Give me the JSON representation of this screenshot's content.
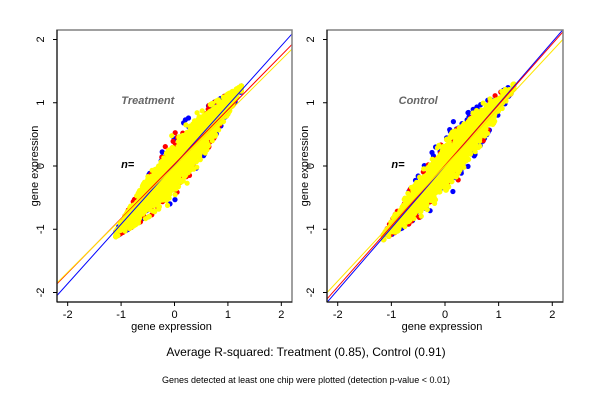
{
  "chart_data": [
    {
      "type": "scatter",
      "title": "Treatment",
      "annotation": "n=",
      "xlabel": "gene expression",
      "ylabel": "gene expression",
      "xlim": [
        -2.2,
        2.2
      ],
      "ylim": [
        -2.15,
        2.15
      ],
      "xticks": [
        -2,
        -1,
        0,
        1,
        2
      ],
      "yticks": [
        -2,
        -1,
        0,
        1,
        2
      ],
      "grid": false,
      "series": [
        {
          "name": "blue replicate",
          "color": "#0000ff",
          "spread": 0.19,
          "fit": {
            "slope": 0.94,
            "intercept": 0.02
          }
        },
        {
          "name": "red replicate",
          "color": "#ff0000",
          "spread": 0.18,
          "fit": {
            "slope": 0.86,
            "intercept": 0.03
          }
        },
        {
          "name": "yellow replicate",
          "color": "#ffff00",
          "spread": 0.16,
          "fit": {
            "slope": 0.84,
            "intercept": 0.0
          }
        }
      ],
      "point_x_range": [
        -1.1,
        1.25
      ]
    },
    {
      "type": "scatter",
      "title": "Control",
      "annotation": "n=",
      "xlabel": "gene expression",
      "ylabel": "gene expression",
      "xlim": [
        -2.2,
        2.2
      ],
      "ylim": [
        -2.15,
        2.15
      ],
      "xticks": [
        -2,
        -1,
        0,
        1,
        2
      ],
      "yticks": [
        -2,
        -1,
        0,
        1,
        2
      ],
      "grid": false,
      "series": [
        {
          "name": "blue replicate",
          "color": "#0000ff",
          "spread": 0.17,
          "fit": {
            "slope": 0.98,
            "intercept": 0.0
          }
        },
        {
          "name": "red replicate",
          "color": "#ff0000",
          "spread": 0.16,
          "fit": {
            "slope": 0.96,
            "intercept": 0.01
          }
        },
        {
          "name": "yellow replicate",
          "color": "#ffff00",
          "spread": 0.14,
          "fit": {
            "slope": 0.91,
            "intercept": 0.0
          }
        }
      ],
      "point_x_range": [
        -1.15,
        1.28
      ]
    }
  ],
  "caption": "Average R-squared: Treatment (0.85), Control (0.91)",
  "footnote": "Genes detected at least one chip were plotted (detection p-value < 0.01)"
}
